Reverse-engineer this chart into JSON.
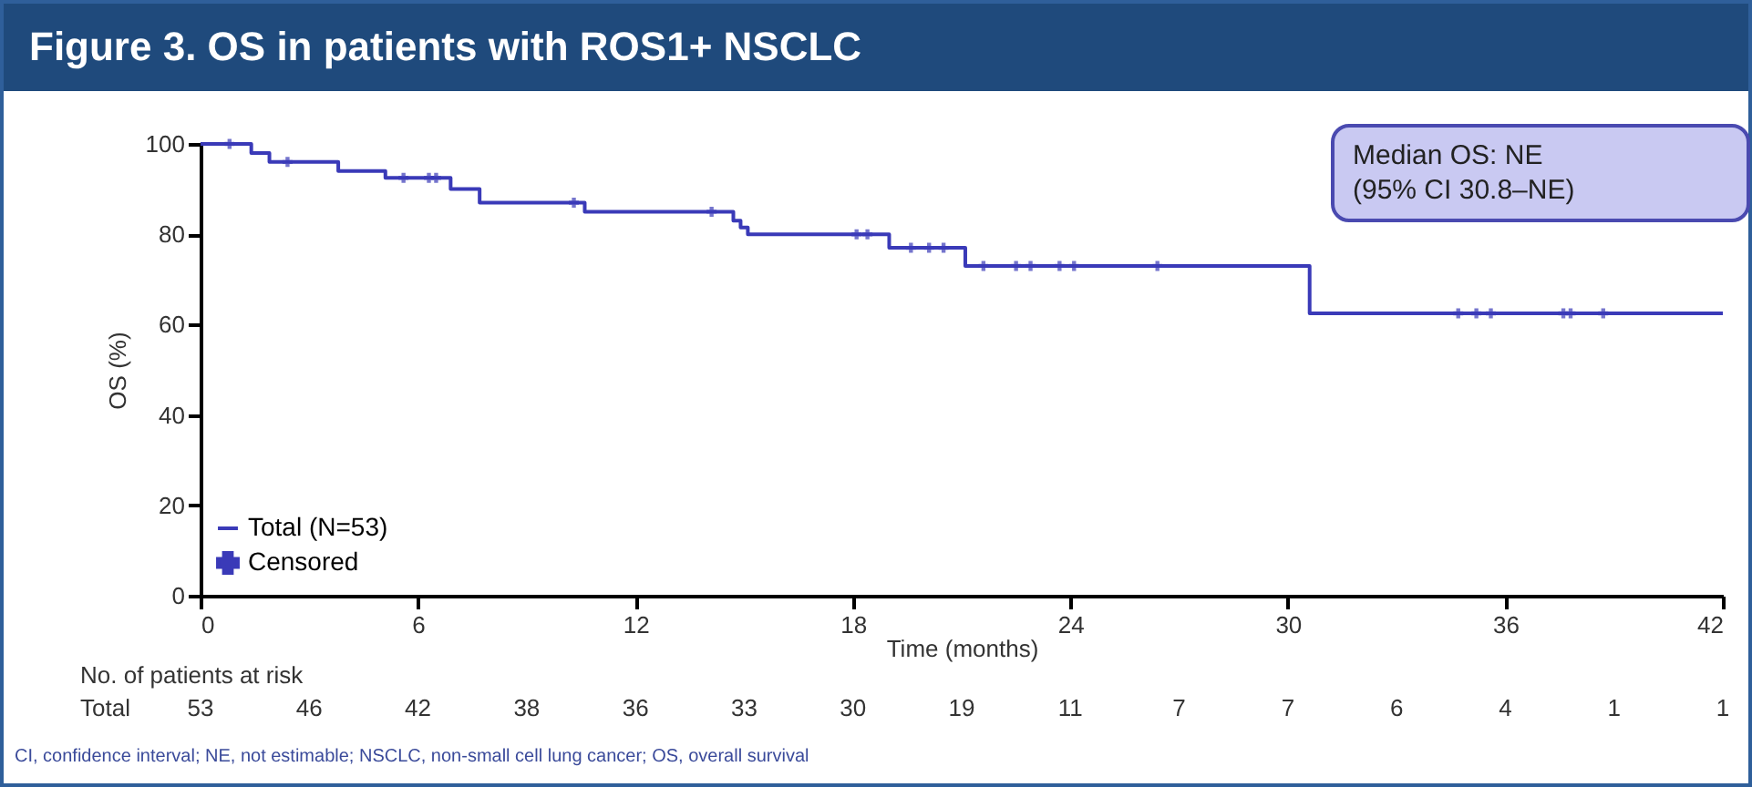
{
  "chart_data": {
    "type": "step",
    "title": "Figure 3. OS in patients with ROS1+ NSCLC",
    "xlabel": "Time (months)",
    "ylabel": "OS (%)",
    "xlim": [
      0,
      42
    ],
    "xticks": [
      0,
      6,
      12,
      18,
      24,
      30,
      36,
      42
    ],
    "ylim": [
      0,
      100
    ],
    "yticks": [
      0,
      20,
      40,
      60,
      80,
      100
    ],
    "grid": false,
    "legend": "bottom left",
    "series": [
      {
        "name": "Total (N=53)",
        "type": "step",
        "color": "#3a3ab8",
        "line_style": "solid",
        "x": [
          0,
          1.4,
          1.9,
          3.8,
          5.1,
          6.9,
          7.7,
          10.6,
          14.7,
          14.9,
          15.1,
          19.0,
          21.1,
          30.6,
          42
        ],
        "values": [
          100,
          98,
          96,
          94,
          92.5,
          90,
          87,
          85,
          83,
          81.5,
          80,
          77,
          73,
          62.5,
          62.5
        ]
      },
      {
        "name": "Censored",
        "type": "scatter",
        "marker": "cross",
        "color": "#3a3ab8",
        "x": [
          0.8,
          2.4,
          5.6,
          6.3,
          6.5,
          10.3,
          14.1,
          18.1,
          18.4,
          19.6,
          20.1,
          20.5,
          21.6,
          22.5,
          22.9,
          23.7,
          24.1,
          26.4,
          34.7,
          35.2,
          35.6,
          37.6,
          37.8,
          38.7
        ],
        "values": [
          100,
          96,
          92.5,
          92.5,
          92.5,
          87,
          85,
          80,
          80,
          77,
          77,
          77,
          73,
          73,
          73,
          73,
          73,
          73,
          62.5,
          62.5,
          62.5,
          62.5,
          62.5,
          62.5
        ]
      }
    ],
    "annotations": [
      "Median OS: NE\n(95% CI 30.8–NE)",
      "No. of patients at risk",
      "Total",
      "53",
      "46",
      "42",
      "38",
      "36",
      "33",
      "30",
      "19",
      "11",
      "7",
      "7",
      "6",
      "4",
      "1",
      "1",
      "CI, confidence interval; NE, not estimable; NSCLC, non-small cell lung cancer; OS, overall survival"
    ]
  }
}
